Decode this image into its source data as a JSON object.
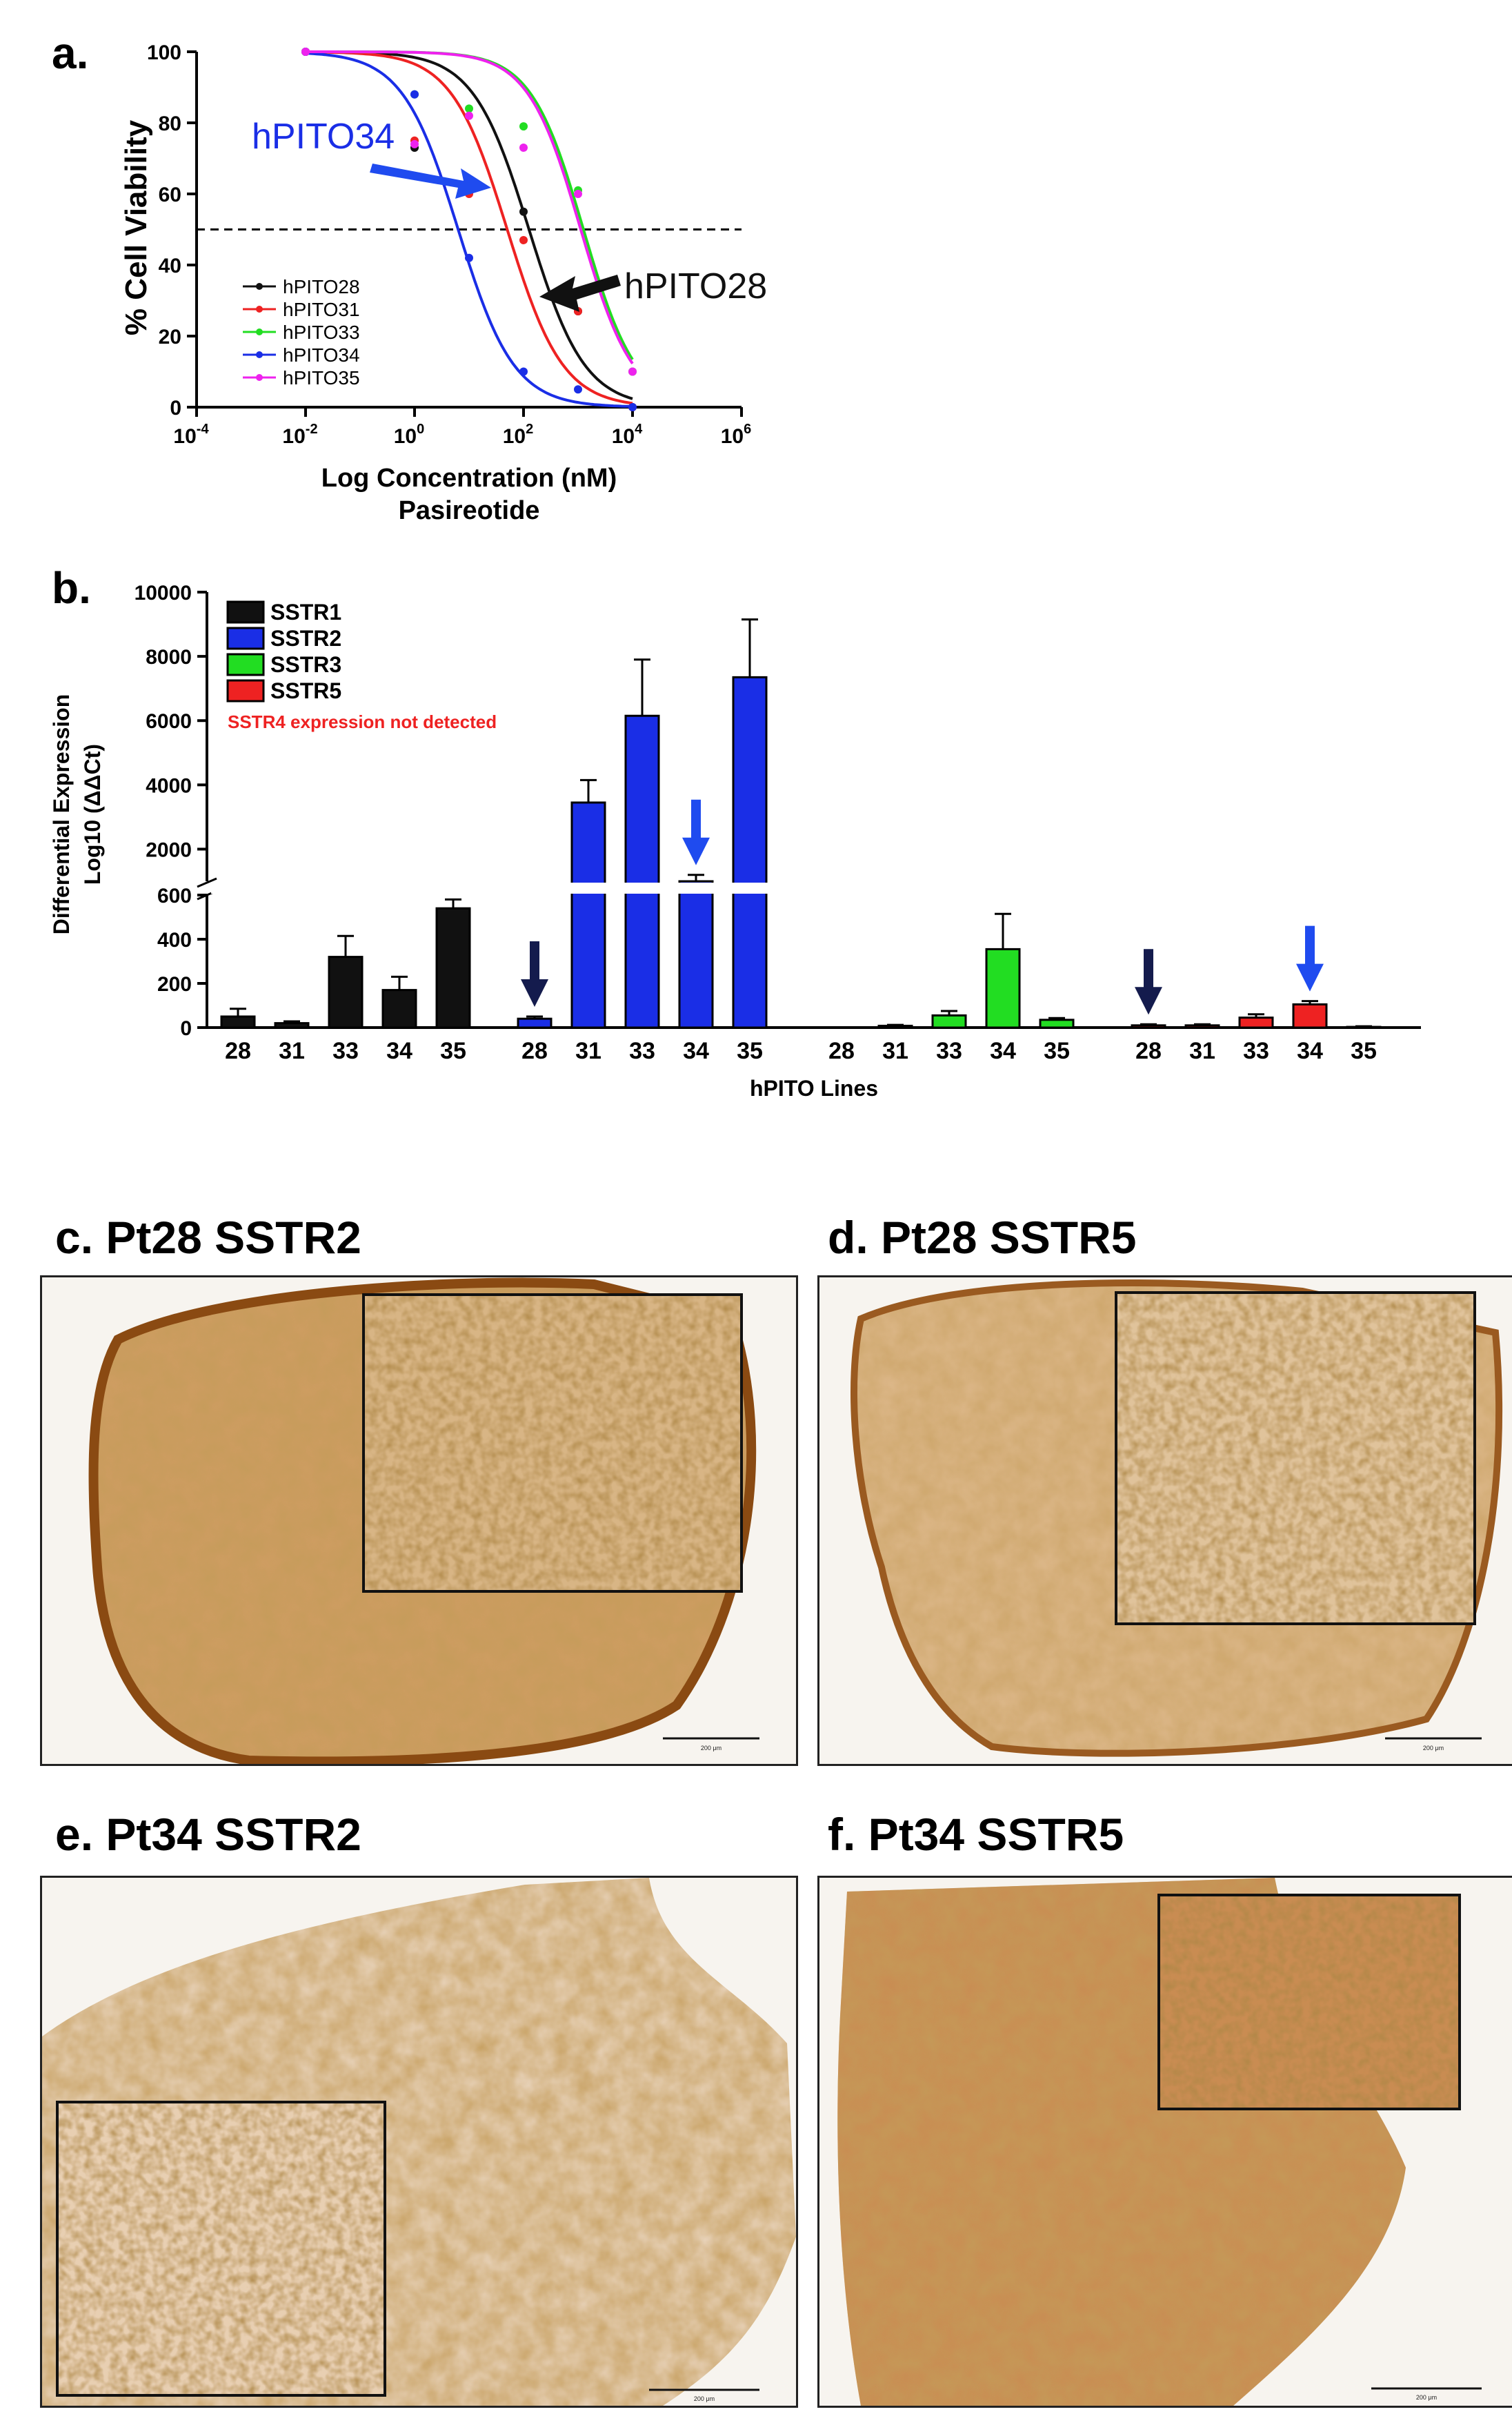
{
  "panels": {
    "a": "a.",
    "b": "b.",
    "c": {
      "label": "c.",
      "title": "Pt28 SSTR2",
      "scalebar": "200 μm"
    },
    "d": {
      "label": "d.",
      "title": "Pt28 SSTR5",
      "scalebar": "200 μm"
    },
    "e": {
      "label": "e.",
      "title": "Pt34 SSTR2",
      "scalebar": "200 μm"
    },
    "f": {
      "label": "f.",
      "title": "Pt34 SSTR5",
      "scalebar": "200 μm"
    }
  },
  "colors": {
    "black": "#111111",
    "blue": "#1a2ee6",
    "green": "#22dd22",
    "red": "#ee2222",
    "magenta": "#ee22ee",
    "navy": "#141b4d",
    "arrow_blue": "#1f4bef"
  },
  "chart_data": [
    {
      "type": "line",
      "title": "",
      "xlabel": "Log Concentration (nM)",
      "xlabel2": "Pasireotide",
      "ylabel": "% Cell Viability",
      "xscale": "log",
      "xlim_log10": [
        -4,
        6
      ],
      "ylim": [
        0,
        100
      ],
      "xticks": [
        {
          "base": "10",
          "exp": "-4"
        },
        {
          "base": "10",
          "exp": "-2"
        },
        {
          "base": "10",
          "exp": "0"
        },
        {
          "base": "10",
          "exp": "2"
        },
        {
          "base": "10",
          "exp": "4"
        },
        {
          "base": "10",
          "exp": "6"
        }
      ],
      "yticks": [
        "0",
        "20",
        "40",
        "60",
        "80",
        "100"
      ],
      "reference_line_y": 50,
      "legend_position": "bottom-left",
      "series": [
        {
          "name": "hPITO28",
          "ic50_log10": 2.1,
          "hill": 0.85,
          "points": [
            [
              -2,
              100
            ],
            [
              0,
              73
            ],
            [
              1,
              63
            ],
            [
              2,
              55
            ],
            [
              3,
              27
            ],
            [
              4,
              0
            ]
          ]
        },
        {
          "name": "hPITO31",
          "ic50_log10": 1.7,
          "hill": 0.85,
          "points": [
            [
              -2,
              100
            ],
            [
              0,
              75
            ],
            [
              1,
              60
            ],
            [
              2,
              47
            ],
            [
              3,
              27
            ],
            [
              4,
              0
            ]
          ]
        },
        {
          "name": "hPITO33",
          "ic50_log10": 3.1,
          "hill": 0.9,
          "points": [
            [
              -2,
              100
            ],
            [
              0,
              88
            ],
            [
              1,
              84
            ],
            [
              2,
              79
            ],
            [
              3,
              61
            ],
            [
              4,
              10
            ]
          ]
        },
        {
          "name": "hPITO34",
          "ic50_log10": 0.8,
          "hill": 0.85,
          "points": [
            [
              -2,
              100
            ],
            [
              0,
              88
            ],
            [
              1,
              42
            ],
            [
              2,
              10
            ],
            [
              3,
              5
            ],
            [
              4,
              0
            ]
          ]
        },
        {
          "name": "hPITO35",
          "ic50_log10": 3.05,
          "hill": 0.9,
          "points": [
            [
              -2,
              100
            ],
            [
              0,
              74
            ],
            [
              1,
              82
            ],
            [
              2,
              73
            ],
            [
              3,
              60
            ],
            [
              4,
              10
            ]
          ]
        }
      ],
      "annotations": [
        {
          "text": "hPITO34",
          "color": "blue"
        },
        {
          "text": "hPITO28",
          "color": "black"
        }
      ]
    },
    {
      "type": "bar",
      "xlabel": "hPITO Lines",
      "ylabel": "Differential Expression",
      "ylabel2": "Log10 (ΔΔCt)",
      "y_axis_break": {
        "lower_range": [
          0,
          600
        ],
        "upper_range": [
          1000,
          10000
        ]
      },
      "yticks_lower": [
        "0",
        "200",
        "400",
        "600"
      ],
      "yticks_upper": [
        "2000",
        "4000",
        "6000",
        "8000",
        "10000"
      ],
      "categories": [
        "28",
        "31",
        "33",
        "34",
        "35"
      ],
      "note": "SSTR4 expression not detected",
      "series": [
        {
          "name": "SSTR1",
          "values": [
            50,
            20,
            320,
            170,
            540
          ],
          "errors": [
            35,
            8,
            95,
            60,
            40
          ]
        },
        {
          "name": "SSTR2",
          "values": [
            40,
            3450,
            6150,
            950,
            7350
          ],
          "errors": [
            10,
            700,
            1750,
            250,
            1800
          ]
        },
        {
          "name": "SSTR3",
          "values": [
            0,
            8,
            55,
            355,
            35
          ],
          "errors": [
            0,
            4,
            20,
            160,
            8
          ]
        },
        {
          "name": "SSTR5",
          "values": [
            10,
            10,
            45,
            105,
            3
          ],
          "errors": [
            5,
            5,
            15,
            15,
            3
          ]
        }
      ],
      "arrows": [
        {
          "series": "SSTR2",
          "category": "28",
          "color": "navy"
        },
        {
          "series": "SSTR2",
          "category": "34",
          "color": "arrow_blue"
        },
        {
          "series": "SSTR5",
          "category": "28",
          "color": "navy"
        },
        {
          "series": "SSTR5",
          "category": "34",
          "color": "arrow_blue"
        }
      ]
    }
  ]
}
